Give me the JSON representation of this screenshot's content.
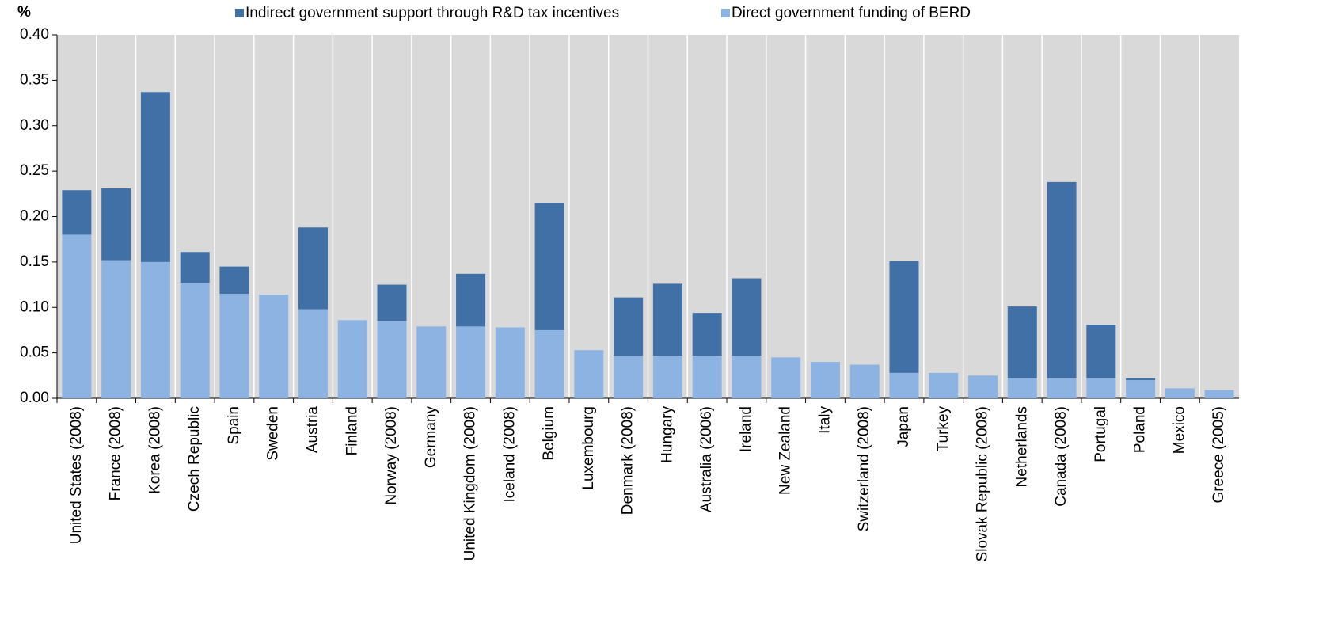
{
  "chart_data": {
    "type": "stacked-bar",
    "y_label": "%",
    "categories": [
      "United States (2008)",
      "France (2008)",
      "Korea (2008)",
      "Czech Republic",
      "Spain",
      "Sweden",
      "Austria",
      "Finland",
      "Norway (2008)",
      "Germany",
      "United Kingdom (2008)",
      "Iceland (2008)",
      "Belgium",
      "Luxembourg",
      "Denmark (2008)",
      "Hungary",
      "Australia (2006)",
      "Ireland",
      "New Zealand",
      "Italy",
      "Switzerland (2008)",
      "Japan",
      "Turkey",
      "Slovak Republic (2008)",
      "Netherlands",
      "Canada (2008)",
      "Portugal",
      "Poland",
      "Mexico",
      "Greece (2005)"
    ],
    "series": [
      {
        "name": "Indirect government support through R&D tax incentives",
        "color": "#4170a6",
        "values": [
          0.049,
          0.079,
          0.187,
          0.034,
          0.03,
          0,
          0.09,
          0,
          0.04,
          0,
          0.058,
          0,
          0.14,
          0,
          0.064,
          0.079,
          0.047,
          0.085,
          0,
          0,
          0,
          0.123,
          0,
          0,
          0.079,
          0.216,
          0.059,
          0.002,
          0,
          0
        ]
      },
      {
        "name": "Direct government funding of BERD",
        "color": "#8db3e2",
        "values": [
          0.18,
          0.152,
          0.15,
          0.127,
          0.115,
          0.114,
          0.098,
          0.086,
          0.085,
          0.079,
          0.079,
          0.078,
          0.075,
          0.053,
          0.047,
          0.047,
          0.047,
          0.047,
          0.045,
          0.04,
          0.037,
          0.028,
          0.028,
          0.025,
          0.022,
          0.022,
          0.022,
          0.02,
          0.011,
          0.009
        ]
      }
    ],
    "ylim": [
      0,
      0.4
    ],
    "yticks": [
      {
        "value": 0,
        "label": "0.00"
      },
      {
        "value": 0.05,
        "label": "0.05"
      },
      {
        "value": 0.1,
        "label": "0.10"
      },
      {
        "value": 0.15,
        "label": "0.15"
      },
      {
        "value": 0.2,
        "label": "0.20"
      },
      {
        "value": 0.25,
        "label": "0.25"
      },
      {
        "value": 0.3,
        "label": "0.30"
      },
      {
        "value": 0.35,
        "label": "0.35"
      },
      {
        "value": 0.4,
        "label": "0.40"
      }
    ],
    "background": "#d9d9d9",
    "grid": "vertical"
  }
}
